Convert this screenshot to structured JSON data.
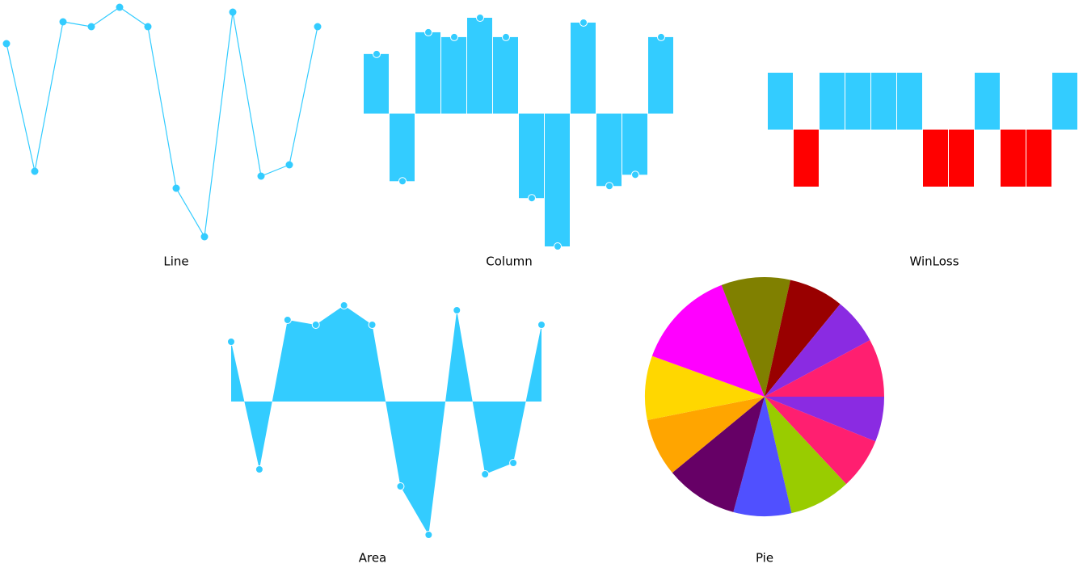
{
  "chart_data": [
    {
      "type": "line",
      "title": "Line",
      "color": "#33ccff",
      "values": [
        74,
        -84,
        101,
        95,
        119,
        95,
        -105,
        -165,
        113,
        -90,
        -76,
        95
      ]
    },
    {
      "type": "column",
      "title": "Column",
      "color": "#33ccff",
      "values": [
        74,
        -84,
        101,
        95,
        119,
        95,
        -105,
        -165,
        113,
        -90,
        -76,
        95
      ]
    },
    {
      "type": "winloss",
      "title": "WinLoss",
      "color": "#33ccff",
      "loss_color": "#ff0000",
      "values": [
        74,
        -84,
        101,
        95,
        119,
        95,
        -105,
        -165,
        113,
        -90,
        -76,
        95
      ]
    },
    {
      "type": "area",
      "title": "Area",
      "color": "#33ccff",
      "values": [
        74,
        -84,
        101,
        95,
        119,
        95,
        -105,
        -165,
        113,
        -90,
        -76,
        95
      ]
    },
    {
      "type": "pie",
      "title": "Pie",
      "values": [
        74,
        84,
        101,
        95,
        119,
        95,
        105,
        165,
        113,
        90,
        76,
        95
      ],
      "colors": [
        "#8a2be2",
        "#ff1f70",
        "#99cc00",
        "#5050ff",
        "#660066",
        "#ffa500",
        "#ffd700",
        "#ff00ff",
        "#808000",
        "#990000",
        "#8a2be2",
        "#ff1f70"
      ]
    }
  ]
}
